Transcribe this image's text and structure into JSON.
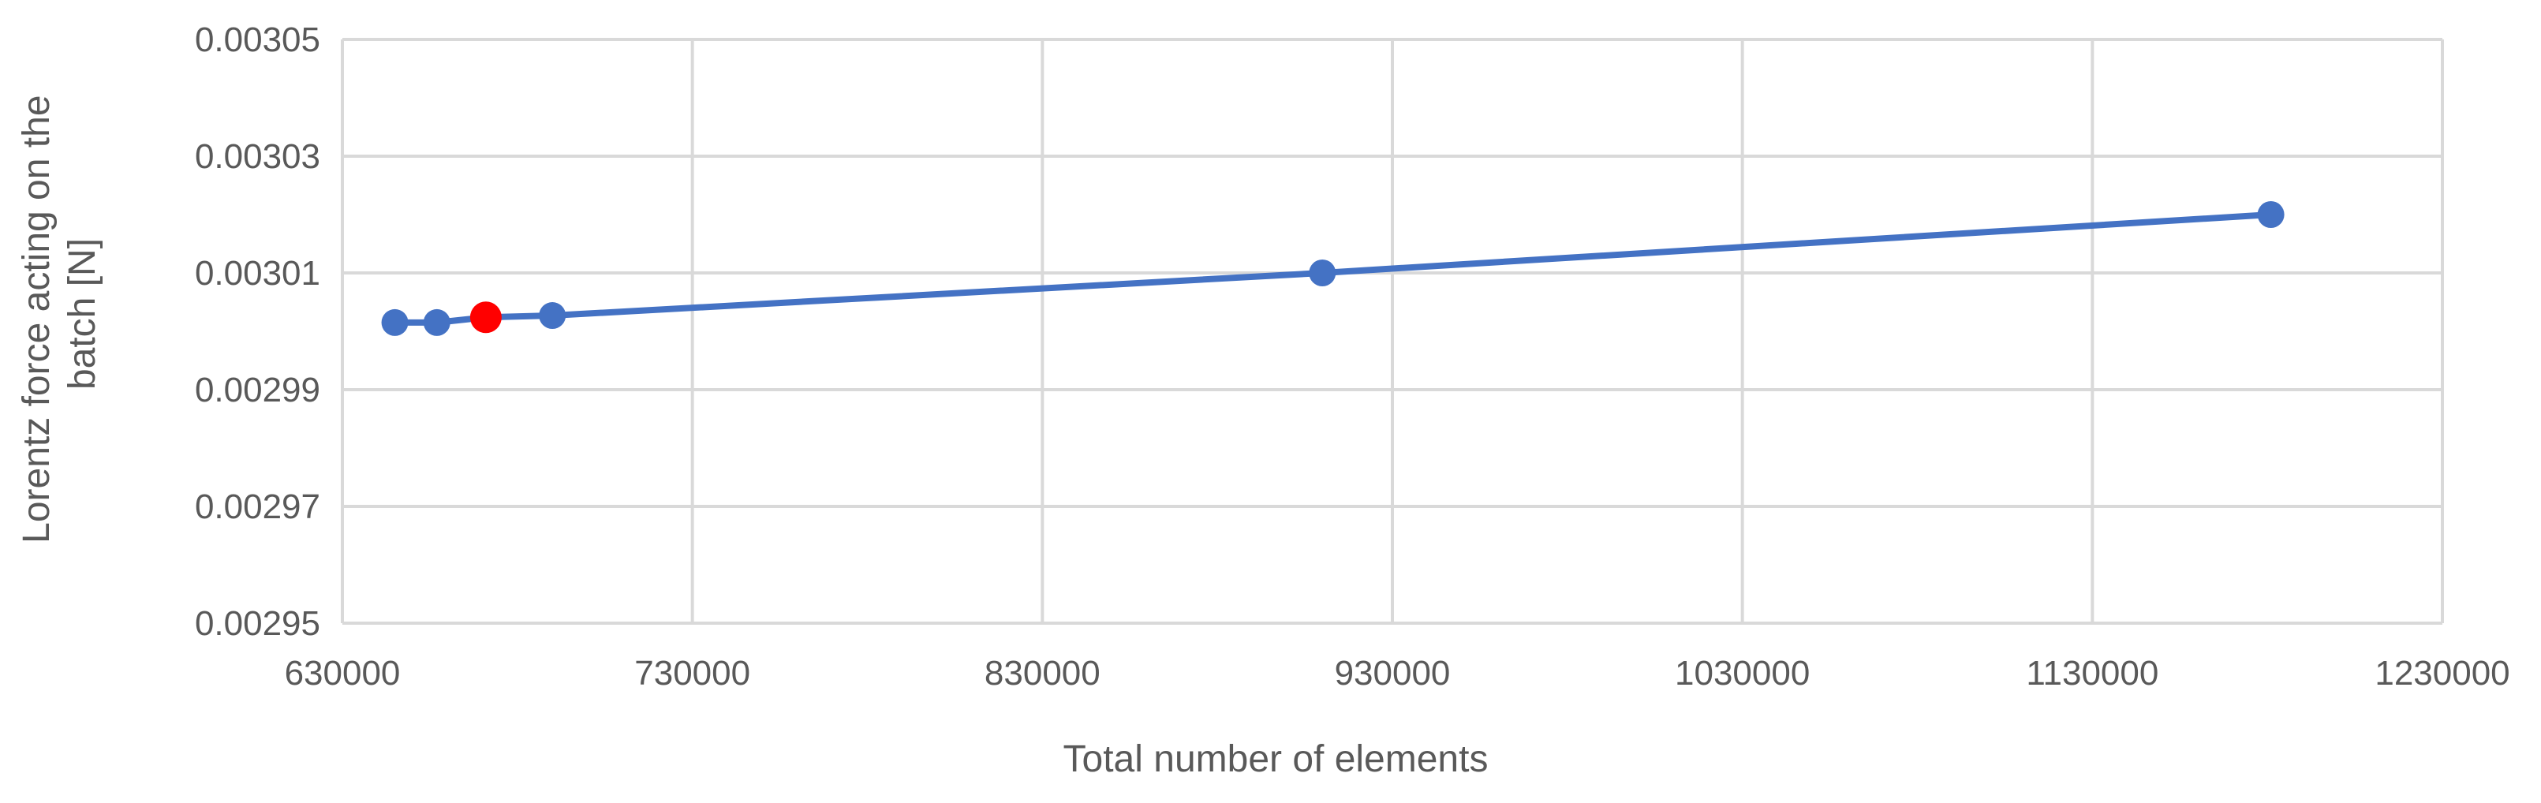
{
  "chart_data": {
    "type": "scatter",
    "title": "",
    "xlabel": "Total number of elements",
    "ylabel_lines": [
      "Lorentz force acting on the",
      "batch [N]"
    ],
    "xlim": [
      630000,
      1230000
    ],
    "ylim": [
      0.00295,
      0.00305
    ],
    "x_ticks": [
      "630000",
      "730000",
      "830000",
      "930000",
      "1030000",
      "1130000",
      "1230000"
    ],
    "y_ticks": [
      "0.00295",
      "0.00297",
      "0.00299",
      "0.00301",
      "0.00303",
      "0.00305"
    ],
    "grid": true,
    "legend": "none",
    "series": [
      {
        "color": "#4472c4",
        "points": [
          {
            "x": 645000,
            "y": 0.0030015,
            "color": "#4472c4"
          },
          {
            "x": 657000,
            "y": 0.0030015,
            "color": "#4472c4"
          },
          {
            "x": 671000,
            "y": 0.0030024,
            "color": "#ff0000"
          },
          {
            "x": 690000,
            "y": 0.0030027,
            "color": "#4472c4"
          },
          {
            "x": 910000,
            "y": 0.00301,
            "color": "#4472c4"
          },
          {
            "x": 1181000,
            "y": 0.00302,
            "color": "#4472c4"
          }
        ]
      }
    ]
  }
}
